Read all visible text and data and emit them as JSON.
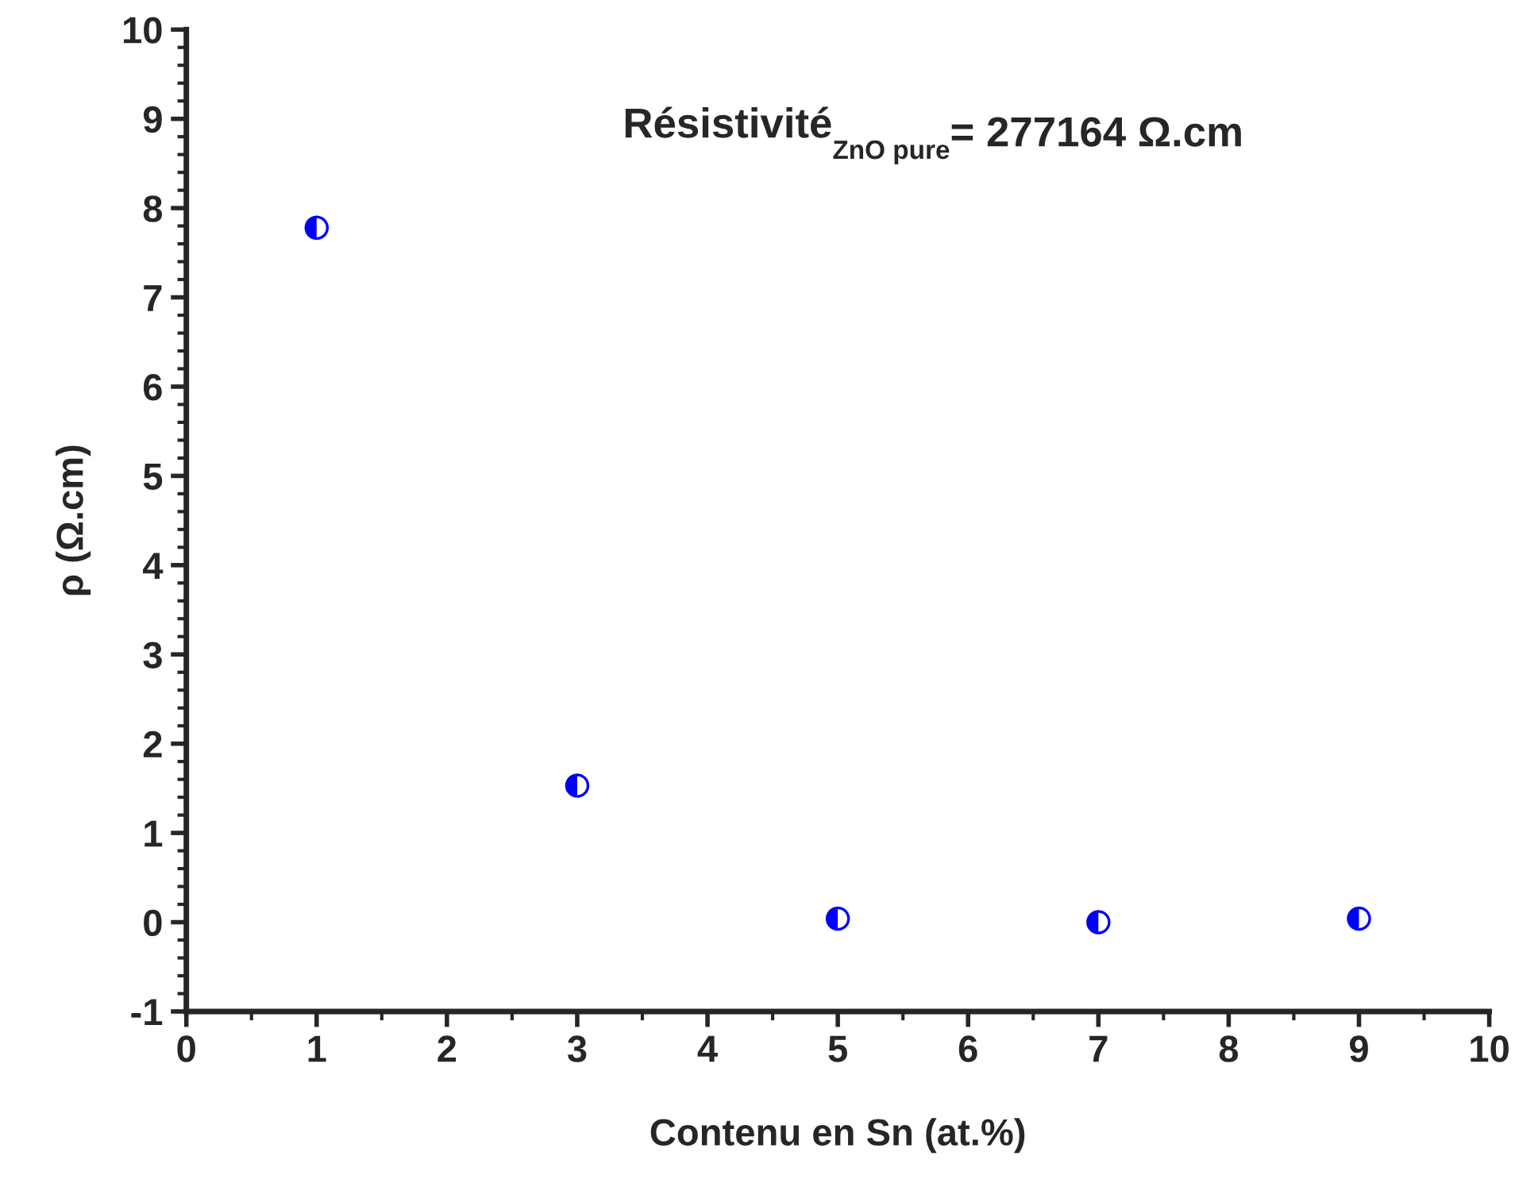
{
  "chart_data": {
    "type": "scatter",
    "xlabel": "Contenu en Sn (at.%)",
    "ylabel": "ρ (Ω.cm)",
    "annotations": [
      "Résistivité$_{ZnO pure}$= 277164 Ω.cm"
    ],
    "x": [
      1,
      3,
      5,
      7,
      9
    ],
    "series": [
      {
        "color": "#0000ff",
        "values": [
          7.78,
          1.53,
          0.04,
          0.0,
          0.04
        ]
      }
    ],
    "xlim": [
      0,
      10
    ],
    "xticks": [
      0,
      1,
      2,
      3,
      4,
      5,
      6,
      7,
      8,
      9,
      10
    ],
    "ylim": [
      -1,
      10
    ],
    "yticks": [
      -1,
      0,
      1,
      2,
      3,
      4,
      5,
      6,
      7,
      8,
      9,
      10
    ],
    "marker": "circle",
    "grid": false,
    "legend": false
  }
}
